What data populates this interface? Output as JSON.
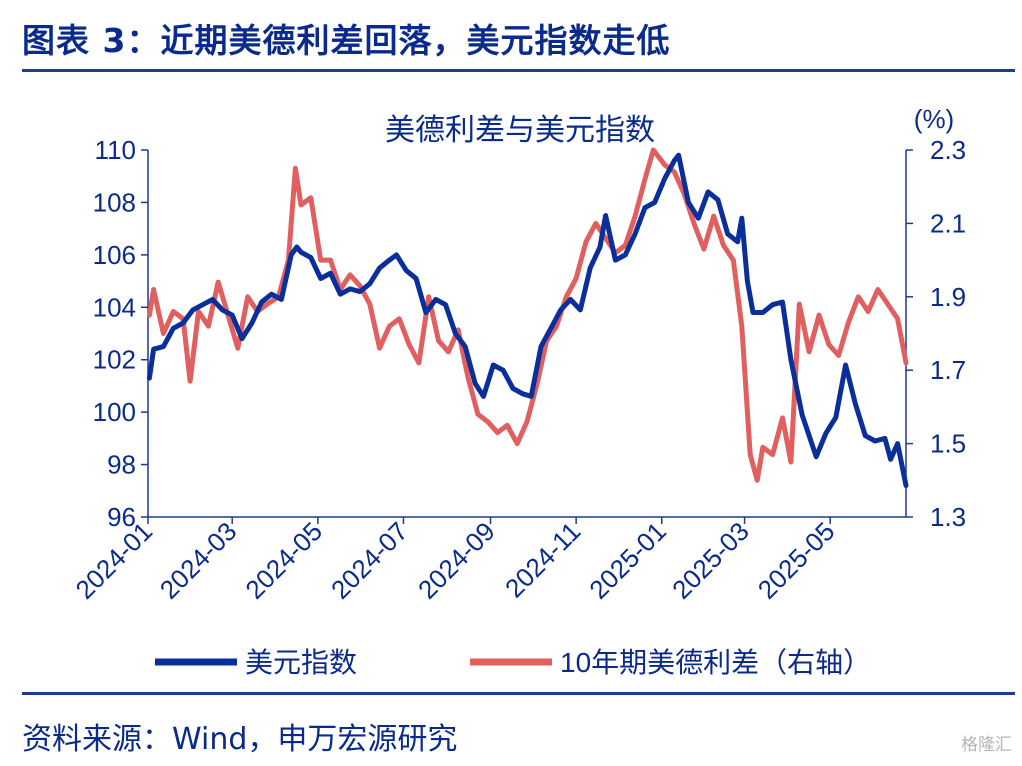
{
  "header": {
    "figure_title": "图表 3：近期美德利差回落，美元指数走低"
  },
  "footer": {
    "source": "资料来源：Wind，申万宏源研究",
    "watermark": "格隆汇"
  },
  "colors": {
    "title": "#0b2b8c",
    "axis": "#1f3a93",
    "dxy_series": "#0a2f9a",
    "spread_series": "#e06060"
  },
  "chart_data": {
    "type": "line",
    "title": "美德利差与美元指数",
    "right_axis_unit": "(%)",
    "x_tick_labels": [
      "2024-01",
      "2024-03",
      "2024-05",
      "2024-07",
      "2024-09",
      "2024-11",
      "2025-01",
      "2025-03",
      "2025-05"
    ],
    "x_ticks": [
      "2024-01-01",
      "2024-03-01",
      "2024-05-01",
      "2024-07-01",
      "2024-09-01",
      "2024-11-01",
      "2025-01-01",
      "2025-03-01",
      "2025-05-01"
    ],
    "xlim": [
      "2024-01-01",
      "2025-06-24"
    ],
    "y_left": {
      "lim": [
        96,
        110
      ],
      "ticks": [
        96,
        98,
        100,
        102,
        104,
        106,
        108,
        110
      ]
    },
    "y_right": {
      "lim": [
        1.3,
        2.3
      ],
      "ticks": [
        1.3,
        1.5,
        1.7,
        1.9,
        2.1,
        2.3
      ]
    },
    "legend_position": "bottom",
    "series": [
      {
        "name": "美元指数",
        "axis": "left",
        "points": [
          [
            "2024-01-02",
            101.3
          ],
          [
            "2024-01-05",
            102.4
          ],
          [
            "2024-01-12",
            102.5
          ],
          [
            "2024-01-19",
            103.2
          ],
          [
            "2024-01-26",
            103.4
          ],
          [
            "2024-02-02",
            103.9
          ],
          [
            "2024-02-09",
            104.1
          ],
          [
            "2024-02-16",
            104.3
          ],
          [
            "2024-02-23",
            103.9
          ],
          [
            "2024-03-01",
            103.7
          ],
          [
            "2024-03-08",
            102.8
          ],
          [
            "2024-03-15",
            103.4
          ],
          [
            "2024-03-22",
            104.2
          ],
          [
            "2024-03-29",
            104.5
          ],
          [
            "2024-04-05",
            104.3
          ],
          [
            "2024-04-12",
            106.0
          ],
          [
            "2024-04-16",
            106.3
          ],
          [
            "2024-04-19",
            106.1
          ],
          [
            "2024-04-26",
            105.9
          ],
          [
            "2024-05-03",
            105.1
          ],
          [
            "2024-05-10",
            105.3
          ],
          [
            "2024-05-17",
            104.5
          ],
          [
            "2024-05-24",
            104.7
          ],
          [
            "2024-05-31",
            104.6
          ],
          [
            "2024-06-07",
            104.9
          ],
          [
            "2024-06-14",
            105.5
          ],
          [
            "2024-06-21",
            105.8
          ],
          [
            "2024-06-26",
            106.0
          ],
          [
            "2024-07-03",
            105.4
          ],
          [
            "2024-07-10",
            105.1
          ],
          [
            "2024-07-17",
            103.8
          ],
          [
            "2024-07-24",
            104.3
          ],
          [
            "2024-07-31",
            104.1
          ],
          [
            "2024-08-07",
            103.0
          ],
          [
            "2024-08-14",
            102.5
          ],
          [
            "2024-08-21",
            101.1
          ],
          [
            "2024-08-27",
            100.6
          ],
          [
            "2024-09-03",
            101.8
          ],
          [
            "2024-09-10",
            101.6
          ],
          [
            "2024-09-17",
            100.9
          ],
          [
            "2024-09-24",
            100.7
          ],
          [
            "2024-09-30",
            100.6
          ],
          [
            "2024-10-07",
            102.5
          ],
          [
            "2024-10-14",
            103.2
          ],
          [
            "2024-10-21",
            103.9
          ],
          [
            "2024-10-28",
            104.3
          ],
          [
            "2024-11-04",
            103.9
          ],
          [
            "2024-11-11",
            105.5
          ],
          [
            "2024-11-18",
            106.3
          ],
          [
            "2024-11-22",
            107.5
          ],
          [
            "2024-11-29",
            105.8
          ],
          [
            "2024-12-06",
            106.0
          ],
          [
            "2024-12-13",
            106.8
          ],
          [
            "2024-12-20",
            107.8
          ],
          [
            "2024-12-27",
            108.0
          ],
          [
            "2025-01-03",
            108.9
          ],
          [
            "2025-01-10",
            109.6
          ],
          [
            "2025-01-13",
            109.8
          ],
          [
            "2025-01-20",
            108.0
          ],
          [
            "2025-01-27",
            107.4
          ],
          [
            "2025-02-03",
            108.4
          ],
          [
            "2025-02-10",
            108.1
          ],
          [
            "2025-02-17",
            106.8
          ],
          [
            "2025-02-24",
            106.5
          ],
          [
            "2025-02-27",
            107.4
          ],
          [
            "2025-03-03",
            105.0
          ],
          [
            "2025-03-07",
            103.8
          ],
          [
            "2025-03-14",
            103.8
          ],
          [
            "2025-03-21",
            104.1
          ],
          [
            "2025-03-28",
            104.2
          ],
          [
            "2025-04-03",
            102.0
          ],
          [
            "2025-04-11",
            99.9
          ],
          [
            "2025-04-21",
            98.3
          ],
          [
            "2025-04-28",
            99.2
          ],
          [
            "2025-05-05",
            99.8
          ],
          [
            "2025-05-12",
            101.8
          ],
          [
            "2025-05-19",
            100.3
          ],
          [
            "2025-05-26",
            99.1
          ],
          [
            "2025-06-02",
            98.9
          ],
          [
            "2025-06-09",
            99.0
          ],
          [
            "2025-06-13",
            98.2
          ],
          [
            "2025-06-18",
            98.8
          ],
          [
            "2025-06-24",
            97.2
          ]
        ]
      },
      {
        "name": "10年期美德利差（右轴）",
        "axis": "right",
        "points": [
          [
            "2024-01-02",
            1.85
          ],
          [
            "2024-01-05",
            1.92
          ],
          [
            "2024-01-12",
            1.8
          ],
          [
            "2024-01-19",
            1.86
          ],
          [
            "2024-01-26",
            1.84
          ],
          [
            "2024-01-31",
            1.67
          ],
          [
            "2024-02-06",
            1.86
          ],
          [
            "2024-02-13",
            1.82
          ],
          [
            "2024-02-20",
            1.94
          ],
          [
            "2024-02-27",
            1.85
          ],
          [
            "2024-03-05",
            1.76
          ],
          [
            "2024-03-12",
            1.9
          ],
          [
            "2024-03-19",
            1.86
          ],
          [
            "2024-03-26",
            1.88
          ],
          [
            "2024-04-03",
            1.9
          ],
          [
            "2024-04-10",
            2.0
          ],
          [
            "2024-04-15",
            2.25
          ],
          [
            "2024-04-19",
            2.15
          ],
          [
            "2024-04-26",
            2.17
          ],
          [
            "2024-05-03",
            2.0
          ],
          [
            "2024-05-10",
            2.0
          ],
          [
            "2024-05-17",
            1.92
          ],
          [
            "2024-05-24",
            1.96
          ],
          [
            "2024-05-31",
            1.93
          ],
          [
            "2024-06-07",
            1.88
          ],
          [
            "2024-06-14",
            1.76
          ],
          [
            "2024-06-21",
            1.82
          ],
          [
            "2024-06-28",
            1.84
          ],
          [
            "2024-07-05",
            1.77
          ],
          [
            "2024-07-12",
            1.72
          ],
          [
            "2024-07-19",
            1.9
          ],
          [
            "2024-07-26",
            1.78
          ],
          [
            "2024-08-02",
            1.75
          ],
          [
            "2024-08-09",
            1.81
          ],
          [
            "2024-08-16",
            1.68
          ],
          [
            "2024-08-23",
            1.58
          ],
          [
            "2024-08-30",
            1.56
          ],
          [
            "2024-09-06",
            1.53
          ],
          [
            "2024-09-13",
            1.55
          ],
          [
            "2024-09-20",
            1.5
          ],
          [
            "2024-09-27",
            1.56
          ],
          [
            "2024-10-04",
            1.66
          ],
          [
            "2024-10-11",
            1.78
          ],
          [
            "2024-10-18",
            1.82
          ],
          [
            "2024-10-25",
            1.9
          ],
          [
            "2024-11-01",
            1.95
          ],
          [
            "2024-11-08",
            2.05
          ],
          [
            "2024-11-15",
            2.1
          ],
          [
            "2024-11-22",
            2.06
          ],
          [
            "2024-11-29",
            2.02
          ],
          [
            "2024-12-06",
            2.04
          ],
          [
            "2024-12-13",
            2.12
          ],
          [
            "2024-12-20",
            2.22
          ],
          [
            "2024-12-26",
            2.3
          ],
          [
            "2025-01-03",
            2.26
          ],
          [
            "2025-01-10",
            2.24
          ],
          [
            "2025-01-17",
            2.18
          ],
          [
            "2025-01-24",
            2.1
          ],
          [
            "2025-01-31",
            2.03
          ],
          [
            "2025-02-07",
            2.12
          ],
          [
            "2025-02-14",
            2.04
          ],
          [
            "2025-02-21",
            2.0
          ],
          [
            "2025-02-27",
            1.82
          ],
          [
            "2025-03-05",
            1.47
          ],
          [
            "2025-03-10",
            1.4
          ],
          [
            "2025-03-14",
            1.49
          ],
          [
            "2025-03-21",
            1.47
          ],
          [
            "2025-03-28",
            1.57
          ],
          [
            "2025-04-03",
            1.45
          ],
          [
            "2025-04-09",
            1.88
          ],
          [
            "2025-04-16",
            1.75
          ],
          [
            "2025-04-23",
            1.85
          ],
          [
            "2025-04-30",
            1.77
          ],
          [
            "2025-05-07",
            1.74
          ],
          [
            "2025-05-14",
            1.83
          ],
          [
            "2025-05-21",
            1.9
          ],
          [
            "2025-05-28",
            1.86
          ],
          [
            "2025-06-04",
            1.92
          ],
          [
            "2025-06-11",
            1.88
          ],
          [
            "2025-06-18",
            1.84
          ],
          [
            "2025-06-24",
            1.72
          ]
        ]
      }
    ]
  }
}
